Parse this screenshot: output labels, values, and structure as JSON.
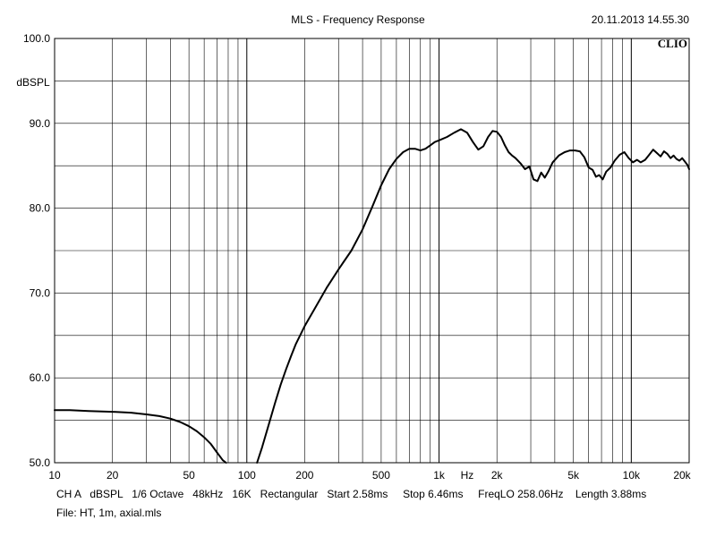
{
  "header": {
    "title": "MLS - Frequency Response",
    "datetime": "20.11.2013 14.55.30",
    "logo": "CLIO"
  },
  "footer": {
    "line1": "CH A   dBSPL   1/6 Octave   48kHz   16K   Rectangular   Start 2.58ms     Stop 6.46ms     FreqLO 258.06Hz    Length 3.88ms",
    "line2": "File: HT, 1m, axial.mls"
  },
  "chart_data": {
    "type": "line",
    "title": "MLS - Frequency Response",
    "xlabel": "Hz",
    "ylabel": "dBSPL",
    "xscale": "log",
    "xlim": [
      10,
      20000
    ],
    "ylim": [
      50,
      100
    ],
    "grid": true,
    "y_ticks": [
      {
        "value": 100,
        "label": "100.0"
      },
      {
        "value": 90,
        "label": "90.0"
      },
      {
        "value": 80,
        "label": "80.0"
      },
      {
        "value": 70,
        "label": "70.0"
      },
      {
        "value": 60,
        "label": "60.0"
      },
      {
        "value": 50,
        "label": "50.0"
      }
    ],
    "y_gridlines": [
      100,
      95,
      90,
      85,
      80,
      75,
      70,
      65,
      60,
      55,
      50
    ],
    "x_ticks": [
      {
        "value": 10,
        "label": "10"
      },
      {
        "value": 20,
        "label": "20"
      },
      {
        "value": 50,
        "label": "50"
      },
      {
        "value": 100,
        "label": "100"
      },
      {
        "value": 200,
        "label": "200"
      },
      {
        "value": 500,
        "label": "500"
      },
      {
        "value": 1000,
        "label": "1k"
      },
      {
        "value": 2000,
        "label": "2k"
      },
      {
        "value": 5000,
        "label": "5k"
      },
      {
        "value": 10000,
        "label": "10k"
      },
      {
        "value": 20000,
        "label": "20k"
      }
    ],
    "x_unit_label": {
      "value": 1400,
      "label": "Hz"
    },
    "series": [
      {
        "segments": [
          [
            [
              10,
              56.2
            ],
            [
              12,
              56.2
            ],
            [
              15,
              56.1
            ],
            [
              20,
              56.0
            ],
            [
              25,
              55.9
            ],
            [
              30,
              55.7
            ],
            [
              35,
              55.5
            ],
            [
              40,
              55.2
            ],
            [
              45,
              54.8
            ],
            [
              50,
              54.3
            ],
            [
              55,
              53.7
            ],
            [
              60,
              53.0
            ],
            [
              65,
              52.2
            ],
            [
              70,
              51.2
            ],
            [
              75,
              50.3
            ],
            [
              78,
              50.0
            ]
          ],
          [
            [
              113,
              50.0
            ],
            [
              120,
              51.8
            ],
            [
              130,
              54.5
            ],
            [
              140,
              57.0
            ],
            [
              150,
              59.2
            ],
            [
              160,
              61.0
            ],
            [
              170,
              62.6
            ],
            [
              180,
              64.0
            ],
            [
              200,
              66.1
            ],
            [
              230,
              68.5
            ],
            [
              260,
              70.6
            ],
            [
              300,
              72.8
            ],
            [
              350,
              75.0
            ],
            [
              400,
              77.5
            ],
            [
              450,
              80.2
            ],
            [
              500,
              82.7
            ],
            [
              550,
              84.6
            ],
            [
              600,
              85.8
            ],
            [
              650,
              86.6
            ],
            [
              700,
              87.0
            ],
            [
              750,
              87.0
            ],
            [
              800,
              86.8
            ],
            [
              850,
              87.0
            ],
            [
              900,
              87.4
            ],
            [
              950,
              87.8
            ],
            [
              1000,
              88.0
            ],
            [
              1100,
              88.4
            ],
            [
              1200,
              88.9
            ],
            [
              1300,
              89.3
            ],
            [
              1400,
              88.9
            ],
            [
              1500,
              87.8
            ],
            [
              1600,
              86.9
            ],
            [
              1700,
              87.3
            ],
            [
              1800,
              88.4
            ],
            [
              1900,
              89.1
            ],
            [
              2000,
              89.0
            ],
            [
              2100,
              88.4
            ],
            [
              2200,
              87.4
            ],
            [
              2300,
              86.6
            ],
            [
              2400,
              86.2
            ],
            [
              2500,
              85.9
            ],
            [
              2650,
              85.3
            ],
            [
              2800,
              84.6
            ],
            [
              2950,
              84.9
            ],
            [
              3100,
              83.4
            ],
            [
              3250,
              83.2
            ],
            [
              3400,
              84.2
            ],
            [
              3550,
              83.6
            ],
            [
              3700,
              84.3
            ],
            [
              3900,
              85.4
            ],
            [
              4200,
              86.2
            ],
            [
              4500,
              86.6
            ],
            [
              4800,
              86.8
            ],
            [
              5100,
              86.8
            ],
            [
              5400,
              86.7
            ],
            [
              5700,
              86.0
            ],
            [
              6000,
              84.8
            ],
            [
              6300,
              84.5
            ],
            [
              6550,
              83.7
            ],
            [
              6800,
              83.9
            ],
            [
              7100,
              83.4
            ],
            [
              7400,
              84.3
            ],
            [
              7800,
              84.8
            ],
            [
              8200,
              85.6
            ],
            [
              8700,
              86.3
            ],
            [
              9200,
              86.6
            ],
            [
              9700,
              85.9
            ],
            [
              10200,
              85.4
            ],
            [
              10700,
              85.7
            ],
            [
              11200,
              85.4
            ],
            [
              11800,
              85.7
            ],
            [
              12400,
              86.3
            ],
            [
              13000,
              86.9
            ],
            [
              13600,
              86.5
            ],
            [
              14200,
              86.1
            ],
            [
              14800,
              86.7
            ],
            [
              15400,
              86.4
            ],
            [
              16000,
              85.9
            ],
            [
              16600,
              86.2
            ],
            [
              17200,
              85.8
            ],
            [
              17800,
              85.6
            ],
            [
              18400,
              85.9
            ],
            [
              19000,
              85.5
            ],
            [
              19600,
              85.1
            ],
            [
              20000,
              84.6
            ]
          ]
        ]
      }
    ]
  }
}
